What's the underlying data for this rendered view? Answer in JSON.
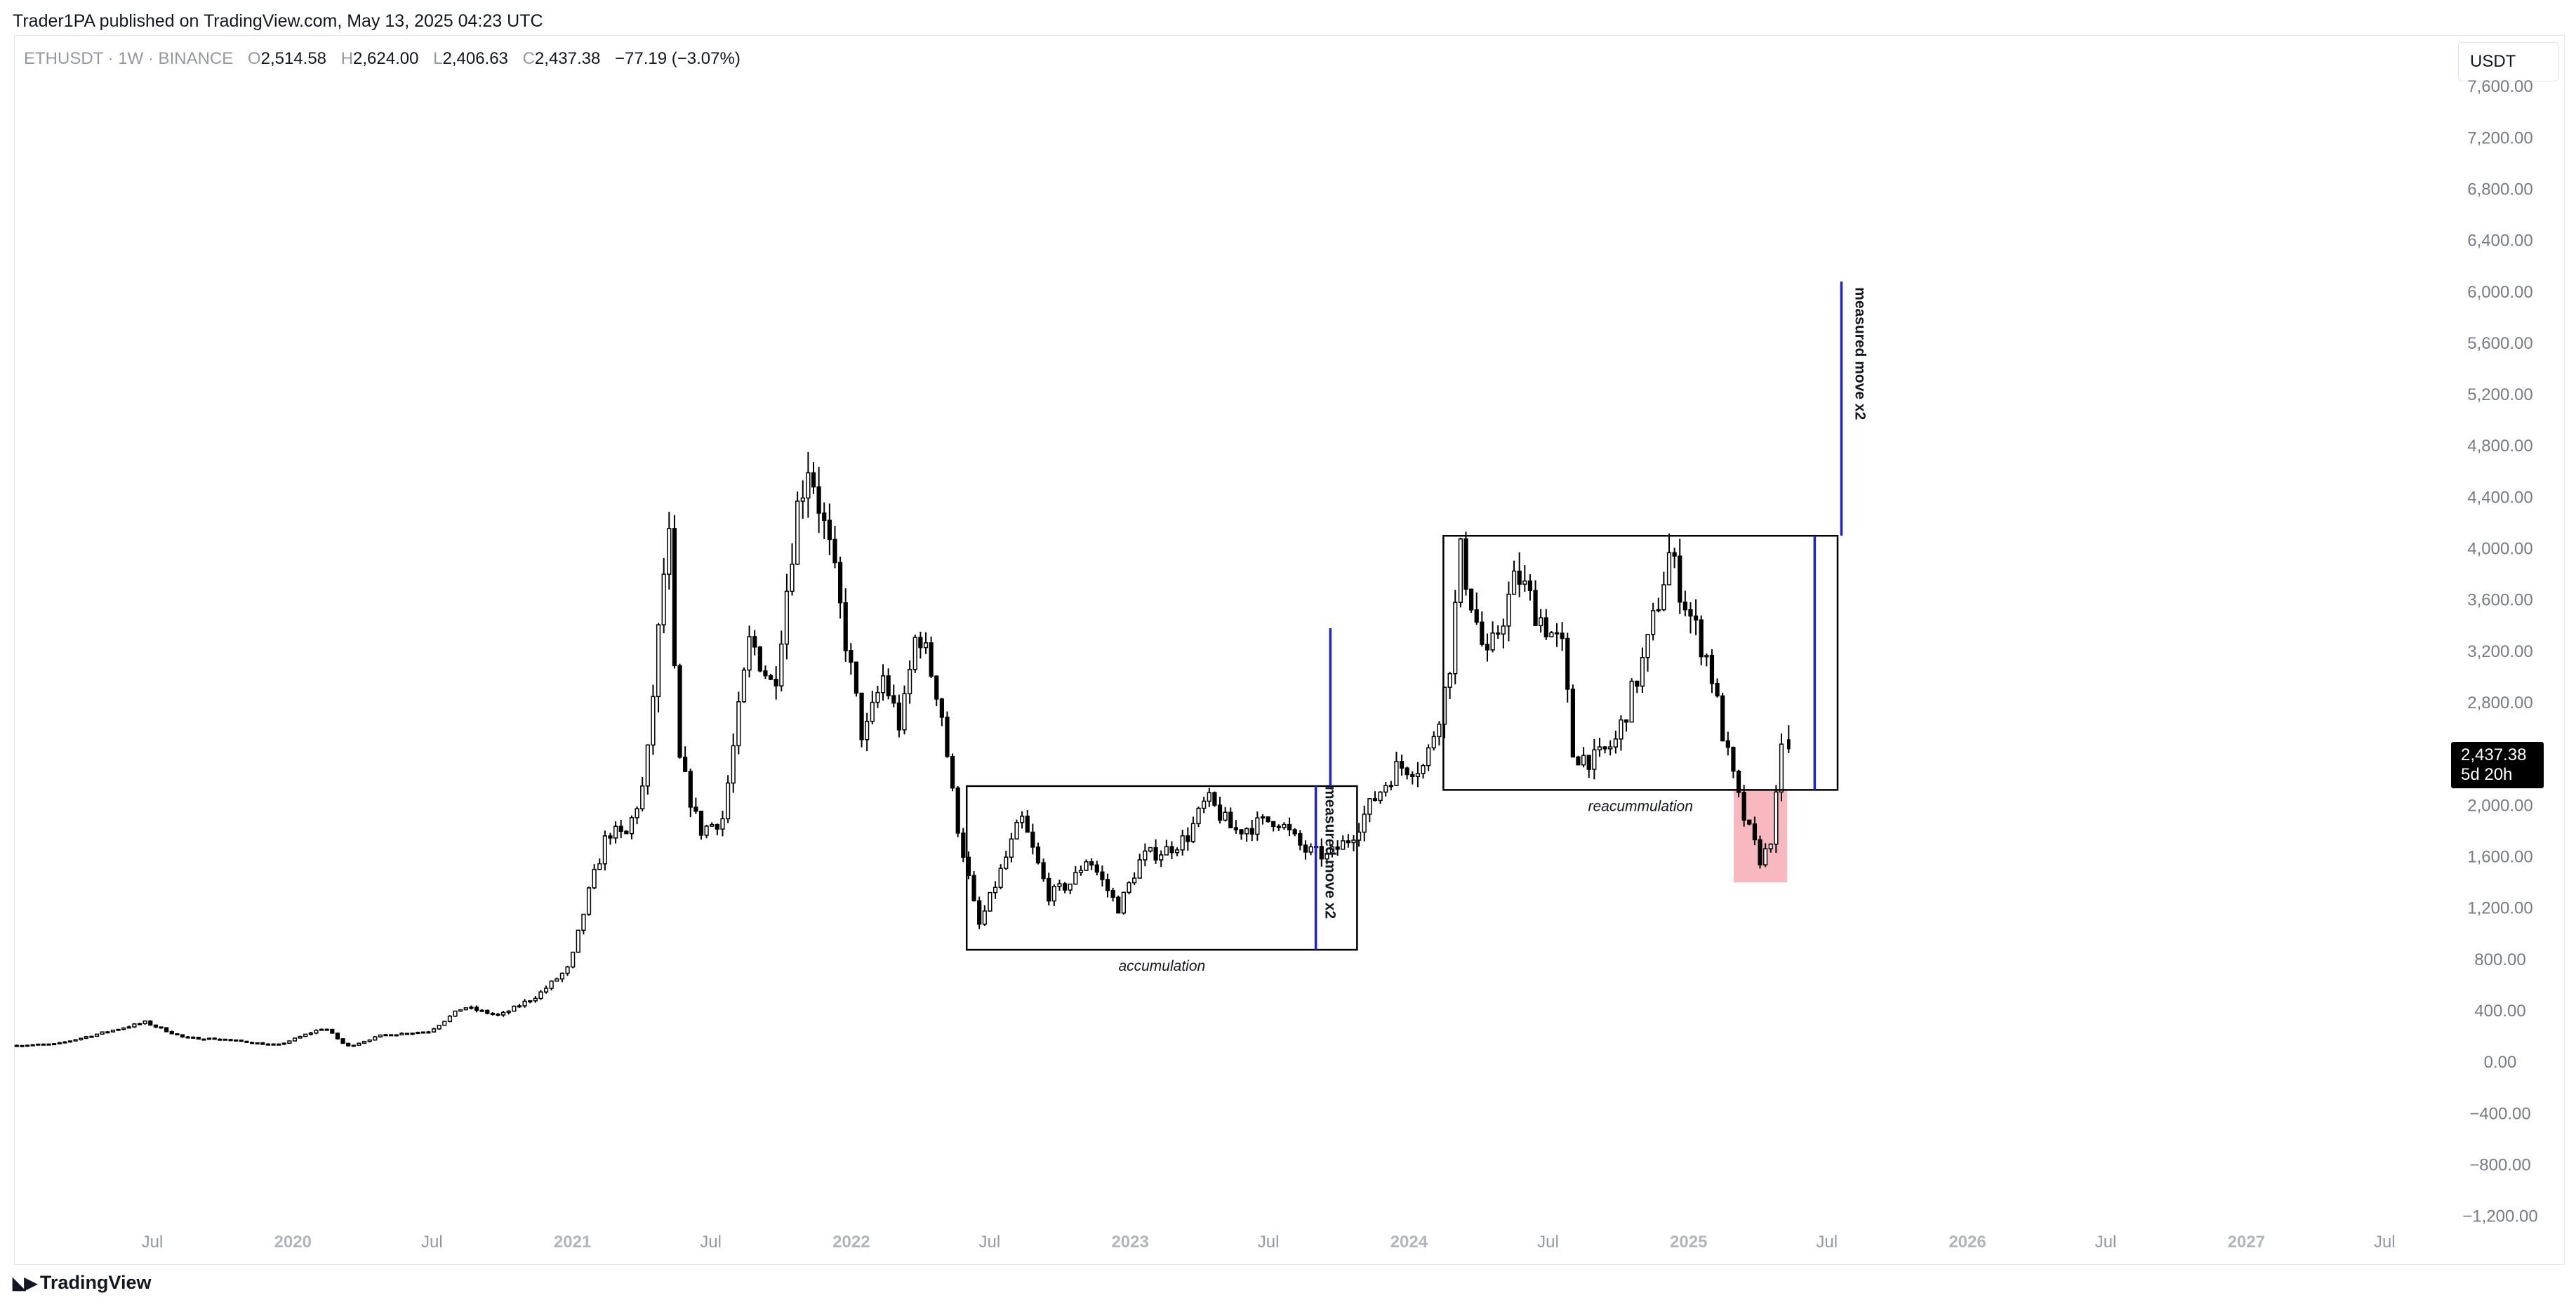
{
  "publisher_line": "Trader1PA published on TradingView.com, May 13, 2025 04:23 UTC",
  "legend": {
    "symbol": "ETHUSDT · 1W · BINANCE",
    "open_key": "O",
    "open": "2,514.58",
    "high_key": "H",
    "high": "2,624.00",
    "low_key": "L",
    "low": "2,406.63",
    "close_key": "C",
    "close": "2,437.38",
    "change": "−77.19 (−3.07%)"
  },
  "unit_button": "USDT",
  "brand": "TradingView",
  "brand_icon": "tradingview-logo-icon",
  "colors": {
    "candle": "#000000",
    "measured_line": "#1e22d2",
    "red_zone": "#f7b8c0",
    "box": "#000000"
  },
  "price_tag": {
    "price": "2,437.38",
    "countdown": "5d 20h"
  },
  "chart_data": {
    "type": "candlestick",
    "title": "",
    "xlabel": "",
    "ylabel": "",
    "ylim": [
      -1350,
      8000
    ],
    "xlim": [
      "2019-01-01",
      "2027-09-15"
    ],
    "grid": false,
    "y_ticks": [
      "7,600.00",
      "7,200.00",
      "6,800.00",
      "6,400.00",
      "6,000.00",
      "5,600.00",
      "5,200.00",
      "4,800.00",
      "4,400.00",
      "4,000.00",
      "3,600.00",
      "3,200.00",
      "2,800.00",
      "2,400.00",
      "2,000.00",
      "1,600.00",
      "1,200.00",
      "800.00",
      "400.00",
      "0.00",
      "−400.00",
      "−800.00",
      "−1,200.00"
    ],
    "y_tick_values": [
      7600,
      7200,
      6800,
      6400,
      6000,
      5600,
      5200,
      4800,
      4400,
      4000,
      3600,
      3200,
      2800,
      2400,
      2000,
      1600,
      1200,
      800,
      400,
      0,
      -400,
      -800,
      -1200
    ],
    "x_ticks": [
      {
        "label": "Jul",
        "date": "2019-07-01",
        "year": false
      },
      {
        "label": "2020",
        "date": "2020-01-01",
        "year": true
      },
      {
        "label": "Jul",
        "date": "2020-07-01",
        "year": false
      },
      {
        "label": "2021",
        "date": "2021-01-01",
        "year": true
      },
      {
        "label": "Jul",
        "date": "2021-07-01",
        "year": false
      },
      {
        "label": "2022",
        "date": "2022-01-01",
        "year": true
      },
      {
        "label": "Jul",
        "date": "2022-07-01",
        "year": false
      },
      {
        "label": "2023",
        "date": "2023-01-01",
        "year": true
      },
      {
        "label": "Jul",
        "date": "2023-07-01",
        "year": false
      },
      {
        "label": "2024",
        "date": "2024-01-01",
        "year": true
      },
      {
        "label": "Jul",
        "date": "2024-07-01",
        "year": false
      },
      {
        "label": "2025",
        "date": "2025-01-01",
        "year": true
      },
      {
        "label": "Jul",
        "date": "2025-07-01",
        "year": false
      },
      {
        "label": "2026",
        "date": "2026-01-01",
        "year": true
      },
      {
        "label": "Jul",
        "date": "2026-07-01",
        "year": false
      },
      {
        "label": "2027",
        "date": "2027-01-01",
        "year": true
      },
      {
        "label": "Jul",
        "date": "2027-07-01",
        "year": false
      }
    ],
    "price_path": [
      [
        "2019-01-01",
        130
      ],
      [
        "2019-03-01",
        140
      ],
      [
        "2019-05-15",
        250
      ],
      [
        "2019-06-25",
        310
      ],
      [
        "2019-08-15",
        190
      ],
      [
        "2019-10-01",
        180
      ],
      [
        "2019-12-15",
        130
      ],
      [
        "2020-02-15",
        270
      ],
      [
        "2020-03-15",
        120
      ],
      [
        "2020-05-01",
        210
      ],
      [
        "2020-07-01",
        240
      ],
      [
        "2020-08-15",
        430
      ],
      [
        "2020-10-01",
        360
      ],
      [
        "2020-11-20",
        520
      ],
      [
        "2021-01-01",
        740
      ],
      [
        "2021-01-25",
        1300
      ],
      [
        "2021-02-20",
        1800
      ],
      [
        "2021-03-15",
        1750
      ],
      [
        "2021-04-10",
        2200
      ],
      [
        "2021-05-10",
        4200
      ],
      [
        "2021-05-22",
        2400
      ],
      [
        "2021-06-20",
        1800
      ],
      [
        "2021-07-20",
        1900
      ],
      [
        "2021-08-25",
        3300
      ],
      [
        "2021-09-25",
        2900
      ],
      [
        "2021-10-25",
        4300
      ],
      [
        "2021-11-10",
        4700
      ],
      [
        "2021-12-10",
        3900
      ],
      [
        "2022-01-20",
        2500
      ],
      [
        "2022-02-15",
        3000
      ],
      [
        "2022-03-10",
        2600
      ],
      [
        "2022-04-01",
        3400
      ],
      [
        "2022-05-01",
        2800
      ],
      [
        "2022-05-20",
        1950
      ],
      [
        "2022-06-20",
        1050
      ],
      [
        "2022-07-20",
        1500
      ],
      [
        "2022-08-15",
        1900
      ],
      [
        "2022-09-20",
        1300
      ],
      [
        "2022-10-20",
        1400
      ],
      [
        "2022-11-10",
        1600
      ],
      [
        "2022-12-20",
        1200
      ],
      [
        "2023-01-20",
        1600
      ],
      [
        "2023-02-20",
        1650
      ],
      [
        "2023-03-20",
        1750
      ],
      [
        "2023-04-15",
        2050
      ],
      [
        "2023-05-20",
        1800
      ],
      [
        "2023-06-20",
        1850
      ],
      [
        "2023-07-15",
        1900
      ],
      [
        "2023-08-20",
        1650
      ],
      [
        "2023-09-20",
        1600
      ],
      [
        "2023-10-20",
        1750
      ],
      [
        "2023-11-20",
        2050
      ],
      [
        "2023-12-20",
        2300
      ],
      [
        "2024-01-25",
        2300
      ],
      [
        "2024-02-25",
        3000
      ],
      [
        "2024-03-12",
        3950
      ],
      [
        "2024-04-15",
        3100
      ],
      [
        "2024-05-25",
        3800
      ],
      [
        "2024-06-20",
        3500
      ],
      [
        "2024-07-25",
        3200
      ],
      [
        "2024-08-05",
        2400
      ],
      [
        "2024-09-05",
        2350
      ],
      [
        "2024-10-01",
        2500
      ],
      [
        "2024-11-10",
        3200
      ],
      [
        "2024-12-10",
        3950
      ],
      [
        "2025-01-05",
        3500
      ],
      [
        "2025-02-01",
        3100
      ],
      [
        "2025-02-20",
        2500
      ],
      [
        "2025-03-15",
        1950
      ],
      [
        "2025-04-10",
        1550
      ],
      [
        "2025-04-25",
        1800
      ],
      [
        "2025-05-05",
        2400
      ],
      [
        "2025-05-12",
        2437
      ]
    ],
    "last_candle": {
      "open": 2514.58,
      "high": 2624.0,
      "low": 2406.63,
      "close": 2437.38
    },
    "annotations": [
      {
        "type": "box",
        "label": "accumulation",
        "x0": "2022-06-01",
        "x1": "2023-10-25",
        "y0": 875,
        "y1": 2150
      },
      {
        "type": "box",
        "label": "reacummulation",
        "x0": "2024-02-15",
        "x1": "2025-07-15",
        "y0": 2120,
        "y1": 4100
      },
      {
        "type": "vline",
        "label": "measured move x2",
        "x": "2023-09-01",
        "y0": 875,
        "y1": 2150,
        "color": "#1e22d2"
      },
      {
        "type": "vline",
        "label": "",
        "x": "2023-09-20",
        "y0": 2150,
        "y1": 3380,
        "color": "#1e22d2"
      },
      {
        "type": "vline",
        "label": "",
        "x": "2025-06-15",
        "y0": 2120,
        "y1": 4100,
        "color": "#1e22d2"
      },
      {
        "type": "vline",
        "label": "measured move x2",
        "x": "2025-07-20",
        "y0": 4100,
        "y1": 6080,
        "color": "#1e22d2"
      },
      {
        "type": "rect",
        "label": "",
        "x0": "2025-03-01",
        "x1": "2025-05-10",
        "y0": 1400,
        "y1": 2120,
        "color": "#f7b8c0"
      }
    ]
  }
}
